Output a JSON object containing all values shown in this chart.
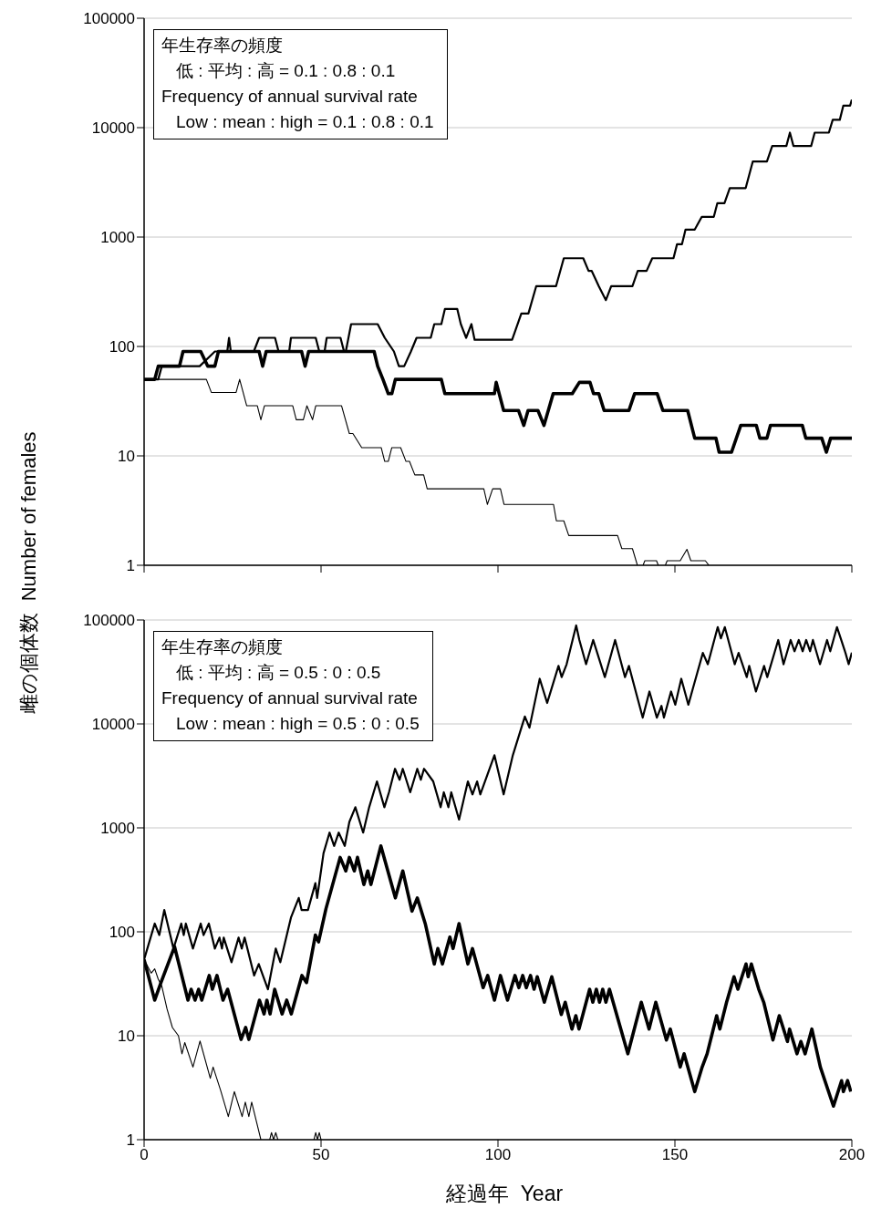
{
  "chart_data": [
    {
      "type": "line",
      "ylabel": "雌の個体数  Number of females",
      "log": "y",
      "grid": "y",
      "tick_labels": "y",
      "marker": "none",
      "line_style": "solid",
      "xlim": [
        0,
        200
      ],
      "xticks": [
        0,
        50,
        100,
        150,
        200
      ],
      "ylim": [
        1,
        100000
      ],
      "yticks": [
        1,
        10,
        100,
        1000,
        10000,
        100000
      ],
      "annotations": [
        "年生存率の頻度",
        "低 : 平均 : 高 = 0.1 : 0.8 : 0.1",
        "Frequency of annual survival rate",
        "Low : mean : high = 0.1 : 0.8 : 0.1"
      ],
      "series": [
        {
          "color": "#000000",
          "x": [
            0,
            4,
            5,
            15.7,
            20,
            23.5,
            24,
            24.5,
            31,
            32.5,
            37,
            38,
            41,
            41.5,
            48.5,
            49.5,
            51,
            51.6,
            55.5,
            56.5,
            57,
            58.5,
            66,
            68,
            70.6,
            72,
            73.5,
            75.4,
            77,
            81,
            82,
            84,
            85,
            88.5,
            89.5,
            91,
            92.5,
            93.4,
            104,
            106.6,
            108.6,
            110.8,
            116.4,
            118.6,
            124.1,
            125.6,
            126.5,
            128.5,
            130.5,
            132,
            138,
            139.5,
            142,
            143.6,
            149.6,
            150.6,
            152,
            153,
            155.6,
            157.6,
            161,
            162,
            164,
            165.5,
            170,
            172,
            176,
            177.5,
            181.5,
            182.5,
            183.5,
            188.5,
            189.5,
            193.5,
            194.6,
            196.6,
            197.6,
            199.5,
            200
          ],
          "values": [
            50,
            50,
            66,
            66,
            90,
            90,
            120,
            90,
            90,
            120,
            120,
            90,
            90,
            120,
            120,
            90,
            90,
            120,
            120,
            90,
            90,
            160,
            160,
            120,
            90,
            66,
            66,
            90,
            120,
            120,
            160,
            160,
            220,
            220,
            160,
            120,
            160,
            115,
            115,
            200,
            200,
            355,
            355,
            640,
            640,
            490,
            490,
            355,
            265,
            355,
            355,
            490,
            490,
            640,
            640,
            860,
            860,
            1170,
            1170,
            1530,
            1530,
            2040,
            2040,
            2800,
            2800,
            4900,
            4900,
            6800,
            6800,
            9000,
            6800,
            6800,
            9000,
            9000,
            11800,
            11800,
            15900,
            15900,
            18000
          ]
        },
        {
          "color": "#000000",
          "x": [
            0,
            3,
            4,
            10,
            11,
            16,
            18,
            20,
            21,
            32.5,
            33.5,
            34.5,
            44.5,
            45.5,
            46.5,
            65,
            66,
            67.5,
            69,
            70,
            71,
            84,
            85,
            99,
            99.5,
            101.6,
            105.8,
            107.3,
            108.5,
            111.3,
            113,
            115.6,
            121,
            123,
            126,
            127,
            128.5,
            130,
            137,
            138.6,
            145,
            146.6,
            153.6,
            155.6,
            161.6,
            162.5,
            166,
            168.6,
            173,
            174,
            176,
            177,
            186,
            187,
            191.5,
            192.8,
            194,
            200
          ],
          "values": [
            50,
            50,
            66,
            66,
            90,
            90,
            66,
            66,
            90,
            90,
            66,
            90,
            90,
            66,
            90,
            90,
            66,
            50,
            37,
            37,
            50,
            50,
            37,
            37,
            47,
            26,
            26,
            19,
            26,
            26,
            19,
            37,
            37,
            47,
            47,
            37,
            37,
            26,
            26,
            37,
            37,
            26,
            26,
            14.5,
            14.5,
            10.8,
            10.8,
            19,
            19,
            14.5,
            14.5,
            19,
            19,
            14.5,
            14.5,
            10.8,
            14.5,
            14.5
          ]
        },
        {
          "color": "#000000",
          "x": [
            0,
            17.6,
            19,
            26,
            27,
            29,
            32,
            33,
            34,
            42,
            43,
            45,
            46,
            47.6,
            48.5,
            55.8,
            58,
            59,
            61.5,
            67,
            68,
            69,
            70,
            72.5,
            74,
            75,
            76.5,
            79,
            80,
            96,
            97,
            98.5,
            100.7,
            101.7,
            115.7,
            116.5,
            118.6,
            120,
            133.8,
            135,
            138,
            139.4,
            140.5,
            141,
            141.5,
            144.8,
            145.3,
            146,
            147.3,
            147.8,
            151.5,
            153.4,
            154.5,
            158.6,
            159.6
          ],
          "values": [
            50,
            50,
            38,
            38,
            50,
            28.7,
            28.7,
            21.4,
            28.7,
            28.7,
            21.4,
            21.4,
            28.7,
            21.4,
            28.7,
            28.7,
            16,
            16,
            11.9,
            11.9,
            8.9,
            8.9,
            11.9,
            11.9,
            8.9,
            8.9,
            6.7,
            6.7,
            5,
            5,
            3.6,
            5,
            5,
            3.6,
            3.6,
            2.55,
            2.55,
            1.87,
            1.87,
            1.42,
            1.42,
            1,
            null,
            1,
            1.1,
            1.1,
            1,
            null,
            1,
            1.1,
            1.1,
            1.4,
            1.1,
            1.1,
            1
          ]
        }
      ]
    },
    {
      "type": "line",
      "xlabel": "経過年  Year",
      "log": "y",
      "grid": "y",
      "marker": "none",
      "line_style": "solid",
      "xlim": [
        0,
        200
      ],
      "xticks": [
        0,
        50,
        100,
        150,
        200
      ],
      "ylim": [
        1,
        100000
      ],
      "yticks": [
        1,
        10,
        100,
        1000,
        10000,
        100000
      ],
      "annotations": [
        "年生存率の頻度",
        "低 : 平均 : 高 = 0.5 : 0 : 0.5",
        "Frequency of annual survival rate",
        "Low : mean : high = 0.5 : 0 : 0.5"
      ],
      "series": [
        {
          "color": "#000000",
          "x": [
            0,
            3,
            4.3,
            5.7,
            8.3,
            10.5,
            11.2,
            11.8,
            13.8,
            16,
            16.8,
            18.3,
            20,
            21.3,
            22,
            22.5,
            24.7,
            26.7,
            27.6,
            28.4,
            31.1,
            32.4,
            35,
            37.2,
            38.5,
            41.5,
            43.7,
            44.5,
            46.3,
            48.4,
            48.9,
            50.7,
            52.4,
            53.7,
            55,
            56.7,
            58,
            59.7,
            61.9,
            63.6,
            65.8,
            67.9,
            69.2,
            70.9,
            72.2,
            73.1,
            75.2,
            77.2,
            78.2,
            79.1,
            81.7,
            83.8,
            84.7,
            86,
            86.8,
            89,
            91.5,
            92.8,
            94.1,
            95,
            99,
            101.6,
            104.2,
            107.6,
            108.9,
            111.8,
            113.9,
            117.1,
            118,
            119.4,
            122.1,
            123,
            124.9,
            126.9,
            130.2,
            133.1,
            135.9,
            137,
            140.9,
            142.8,
            144.9,
            146.2,
            146.9,
            148.9,
            150.1,
            151.8,
            153.8,
            156.1,
            157.9,
            159.3,
            162.1,
            163,
            164.1,
            166.9,
            168,
            170.3,
            171,
            172.9,
            175.2,
            176.1,
            179.2,
            180.7,
            182.7,
            183.8,
            185,
            186.1,
            187.1,
            188.2,
            189,
            191,
            193,
            193.9,
            195.8,
            197,
            198.2,
            199.1,
            200
          ],
          "values": [
            54,
            120,
            93,
            162,
            69,
            120,
            93,
            120,
            69,
            120,
            93,
            120,
            69,
            88,
            69,
            88,
            51,
            88,
            69,
            88,
            38,
            49,
            28,
            69,
            51,
            137,
            212,
            162,
            162,
            294,
            212,
            570,
            900,
            670,
            900,
            670,
            1140,
            1580,
            900,
            1580,
            2800,
            1580,
            2200,
            3700,
            2900,
            3700,
            2200,
            3700,
            2900,
            3700,
            2800,
            1580,
            2200,
            1580,
            2200,
            1200,
            2800,
            2100,
            2800,
            2100,
            5000,
            2100,
            5000,
            11800,
            9200,
            27200,
            15900,
            36200,
            28200,
            37500,
            88600,
            64200,
            37500,
            64200,
            28200,
            64200,
            28200,
            36200,
            11500,
            20500,
            11500,
            14900,
            11500,
            20500,
            15300,
            27200,
            15300,
            29200,
            48200,
            37500,
            85400,
            66600,
            85400,
            37500,
            48200,
            28200,
            36200,
            20500,
            36200,
            28200,
            64200,
            37500,
            64200,
            50000,
            64200,
            50000,
            64200,
            50000,
            64200,
            37500,
            64200,
            50000,
            85400,
            64200,
            48200,
            37500,
            48500
          ]
        },
        {
          "color": "#000000",
          "x": [
            0,
            3,
            4.7,
            8.6,
            12.4,
            13.3,
            14.4,
            15.4,
            16.3,
            18.4,
            19.3,
            20.6,
            22.3,
            23.6,
            27.4,
            28.7,
            29.6,
            32.6,
            33.9,
            34.7,
            35.6,
            36.9,
            39,
            40.3,
            41.6,
            44.6,
            45.9,
            48.4,
            49.3,
            51.4,
            55.4,
            57,
            58,
            59.4,
            60.3,
            62.1,
            63.2,
            64.1,
            66.9,
            71,
            73.1,
            75.7,
            77.2,
            79.5,
            82,
            83,
            84.3,
            86.4,
            87.3,
            89,
            91.5,
            92.8,
            95.8,
            97.1,
            99,
            100.7,
            102.7,
            104.8,
            105.9,
            107,
            108,
            109.2,
            110.2,
            111.1,
            113.1,
            115.2,
            117.9,
            119,
            120.9,
            122,
            122.9,
            125.9,
            126.8,
            127.8,
            128.7,
            129.6,
            130.5,
            131.5,
            136.7,
            140.5,
            142.7,
            144.6,
            147.6,
            148.7,
            151.5,
            152.6,
            155.6,
            157.7,
            159.1,
            161.8,
            162.7,
            164.6,
            166.7,
            167.8,
            170.1,
            170.7,
            171.6,
            173.7,
            175.1,
            177.7,
            179.5,
            181.8,
            182.4,
            184.5,
            185.6,
            186.8,
            188.7,
            191.1,
            194.8,
            197.1,
            197.6,
            198.8,
            199.7
          ],
          "values": [
            54,
            22,
            32,
            72,
            22,
            28,
            22,
            28,
            22,
            38,
            28,
            38,
            22,
            28,
            9.2,
            12,
            9.2,
            22,
            16.2,
            22,
            16.2,
            28,
            16.2,
            22,
            16.2,
            38,
            32.5,
            93,
            80,
            167,
            520,
            385,
            520,
            385,
            520,
            285,
            385,
            285,
            670,
            212,
            385,
            158,
            212,
            118,
            49,
            69,
            49,
            89,
            69,
            120,
            49,
            69,
            29,
            38,
            22,
            38,
            22,
            38,
            29,
            38,
            29,
            38,
            28,
            37,
            21,
            37,
            16,
            21,
            11.6,
            15.6,
            11.6,
            28,
            21,
            28,
            21,
            28,
            21,
            28,
            6.7,
            21,
            11.6,
            21,
            9.1,
            11.6,
            5,
            6.7,
            2.9,
            5,
            6.7,
            15.6,
            11.6,
            21,
            37,
            28,
            49,
            37,
            49,
            28,
            21,
            9.1,
            15.6,
            8.8,
            11.6,
            6.7,
            8.8,
            6.7,
            11.6,
            5,
            2.1,
            3.7,
            2.9,
            3.7,
            2.9
          ]
        },
        {
          "color": "#000000",
          "x": [
            0,
            2,
            3,
            4,
            5,
            6.5,
            8,
            9.7,
            10.7,
            11.5,
            13.8,
            15.8,
            18.7,
            19.5,
            21.6,
            23.8,
            25.5,
            27.7,
            28.6,
            29.6,
            30.4,
            33,
            34,
            35.5,
            36,
            36.6,
            37.2,
            37.8,
            38.5,
            48,
            48.5,
            49,
            49.5,
            50
          ],
          "values": [
            54,
            40,
            44,
            35,
            30,
            18,
            12,
            10,
            6.7,
            8.6,
            5,
            8.9,
            3.9,
            5,
            3,
            1.67,
            2.9,
            1.67,
            2.3,
            1.67,
            2.3,
            1,
            null,
            1,
            1.17,
            1,
            1.17,
            1,
            null,
            1,
            1.17,
            1,
            1.17,
            1
          ]
        }
      ]
    }
  ]
}
